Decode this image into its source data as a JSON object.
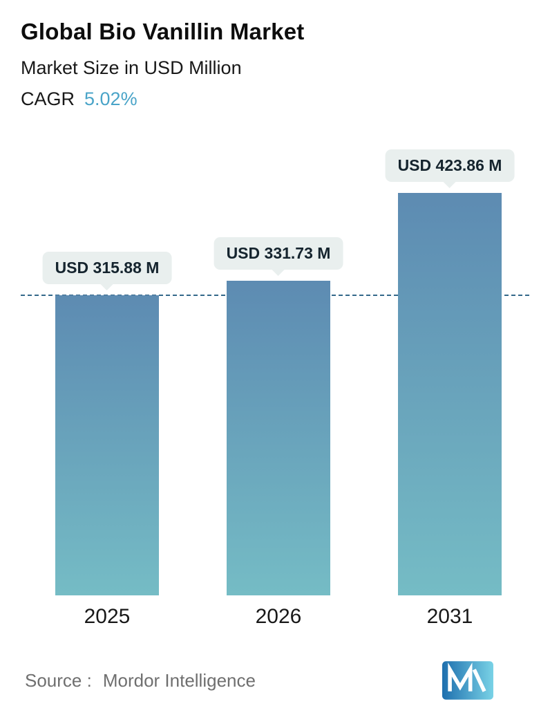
{
  "header": {
    "title": "Global Bio Vanillin Market",
    "subtitle": "Market Size in USD Million",
    "cagr_label": "CAGR",
    "cagr_value": "5.02%"
  },
  "chart_data": {
    "type": "bar",
    "title": "Global Bio Vanillin Market",
    "subtitle": "Market Size in USD Million",
    "cagr": "5.02%",
    "categories": [
      "2025",
      "2026",
      "2031"
    ],
    "values": [
      315.88,
      331.73,
      423.86
    ],
    "value_labels": [
      "USD 315.88 M",
      "USD 331.73 M",
      "USD 423.86 M"
    ],
    "ylim": [
      0,
      423.86
    ],
    "grid": false,
    "legend": false,
    "reference_line": {
      "style": "dashed",
      "value": 315.88
    },
    "colors": {
      "bar_top": "#5d8bb2",
      "bar_bottom": "#75bcc5",
      "dashed_line": "#33688a",
      "label_bubble_bg": "#e9efee",
      "label_text": "#15242e",
      "cagr_value": "#4aa4c8"
    }
  },
  "footer": {
    "source_label": "Source :",
    "source_value": "Mordor Intelligence",
    "logo": "mordor-intelligence-logo"
  }
}
